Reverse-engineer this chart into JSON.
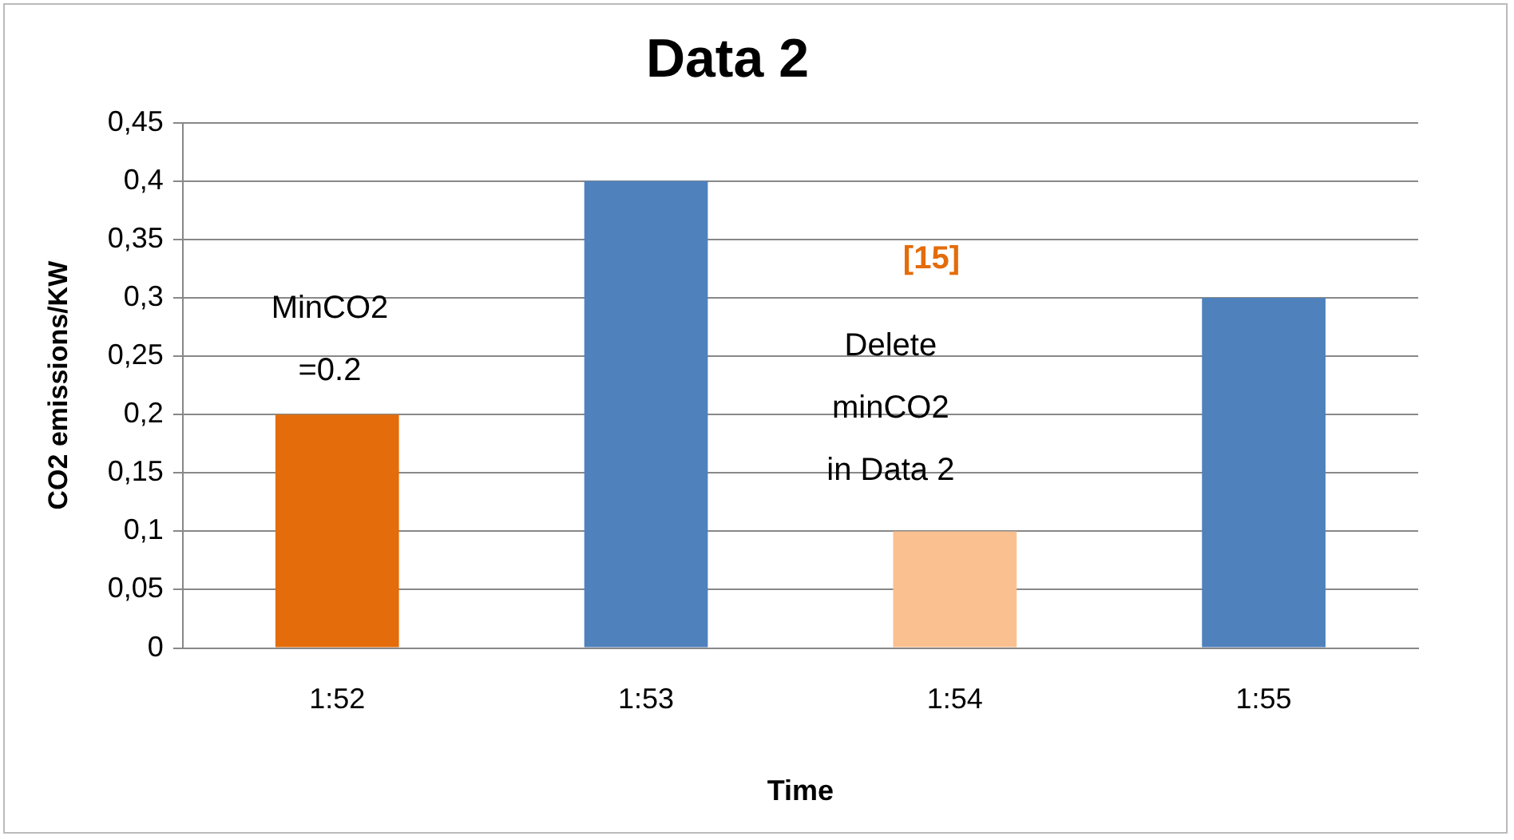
{
  "chart_data": {
    "type": "bar",
    "title": "Data 2",
    "xlabel": "Time",
    "ylabel": "CO2 emissions/KW",
    "categories": [
      "1:52",
      "1:53",
      "1:54",
      "1:55"
    ],
    "values": [
      0.2,
      0.4,
      0.1,
      0.3
    ],
    "colors": [
      "#e46c0a",
      "#4f81bd",
      "#fac090",
      "#4f81bd"
    ],
    "ylim": [
      0,
      0.45
    ],
    "yticks": [
      0,
      {
        "value": 0.05,
        "label": "0,05"
      },
      {
        "value": 0.1,
        "label": "0,1"
      },
      {
        "value": 0.15,
        "label": "0,15"
      },
      {
        "value": 0.2,
        "label": "0,2"
      },
      {
        "value": 0.25,
        "label": "0,25"
      },
      {
        "value": 0.3,
        "label": "0,3"
      },
      {
        "value": 0.35,
        "label": "0,35"
      },
      {
        "value": 0.4,
        "label": "0,4"
      },
      {
        "value": 0.45,
        "label": "0,45"
      }
    ],
    "grid": "y",
    "legend": false,
    "annotations": [
      "MinCO2\n=0.2",
      "[15]",
      "Delete\nminCO2\nin Data 2"
    ]
  }
}
